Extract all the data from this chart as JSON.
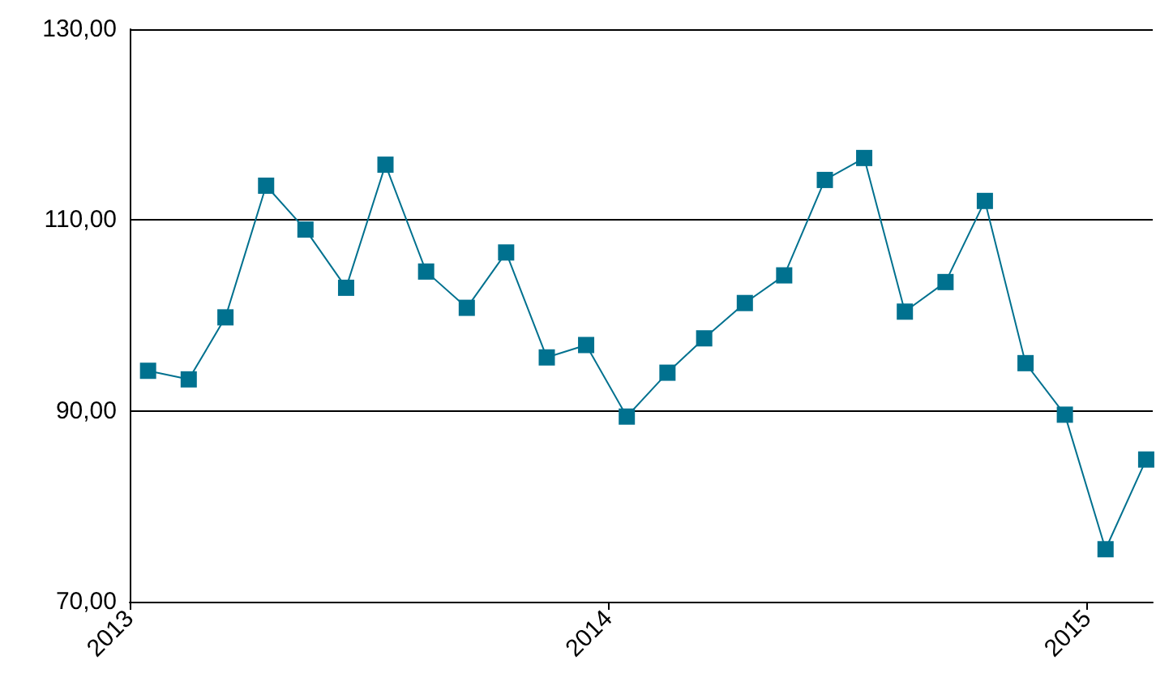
{
  "chart_data": {
    "type": "line",
    "x": [
      "2013-01-15",
      "2013-02-15",
      "2013-03-15",
      "2013-04-15",
      "2013-05-15",
      "2013-06-15",
      "2013-07-15",
      "2013-08-15",
      "2013-09-15",
      "2013-10-15",
      "2013-11-15",
      "2013-12-15",
      "2014-01-15",
      "2014-02-15",
      "2014-03-15",
      "2014-04-15",
      "2014-05-15",
      "2014-06-15",
      "2014-07-15",
      "2014-08-15",
      "2014-09-15",
      "2014-10-15",
      "2014-11-15",
      "2014-12-15",
      "2015-01-15",
      "2015-02-15"
    ],
    "series": [
      {
        "color": "#00718f",
        "values": [
          94.2,
          93.3,
          99.8,
          113.6,
          109.0,
          102.9,
          115.8,
          104.6,
          100.8,
          106.6,
          95.6,
          96.9,
          89.4,
          94.0,
          97.6,
          101.3,
          104.2,
          114.2,
          116.5,
          100.4,
          103.5,
          112.0,
          95.0,
          89.6,
          75.5,
          84.9
        ]
      }
    ],
    "xlim": [
      "2013-01-01",
      "2015-02-20"
    ],
    "xticks": [
      {
        "value": "2013-01-01",
        "label": "2013"
      },
      {
        "value": "2014-01-01",
        "label": "2014"
      },
      {
        "value": "2015-01-01",
        "label": "2015"
      }
    ],
    "ylim": [
      70,
      130
    ],
    "yticks": [
      {
        "value": 70,
        "label": "70,00"
      },
      {
        "value": 90,
        "label": "90,00"
      },
      {
        "value": 110,
        "label": "110,00"
      },
      {
        "value": 130,
        "label": "130,00"
      }
    ],
    "grid": "y",
    "marker": "square",
    "line_style": "solid"
  }
}
